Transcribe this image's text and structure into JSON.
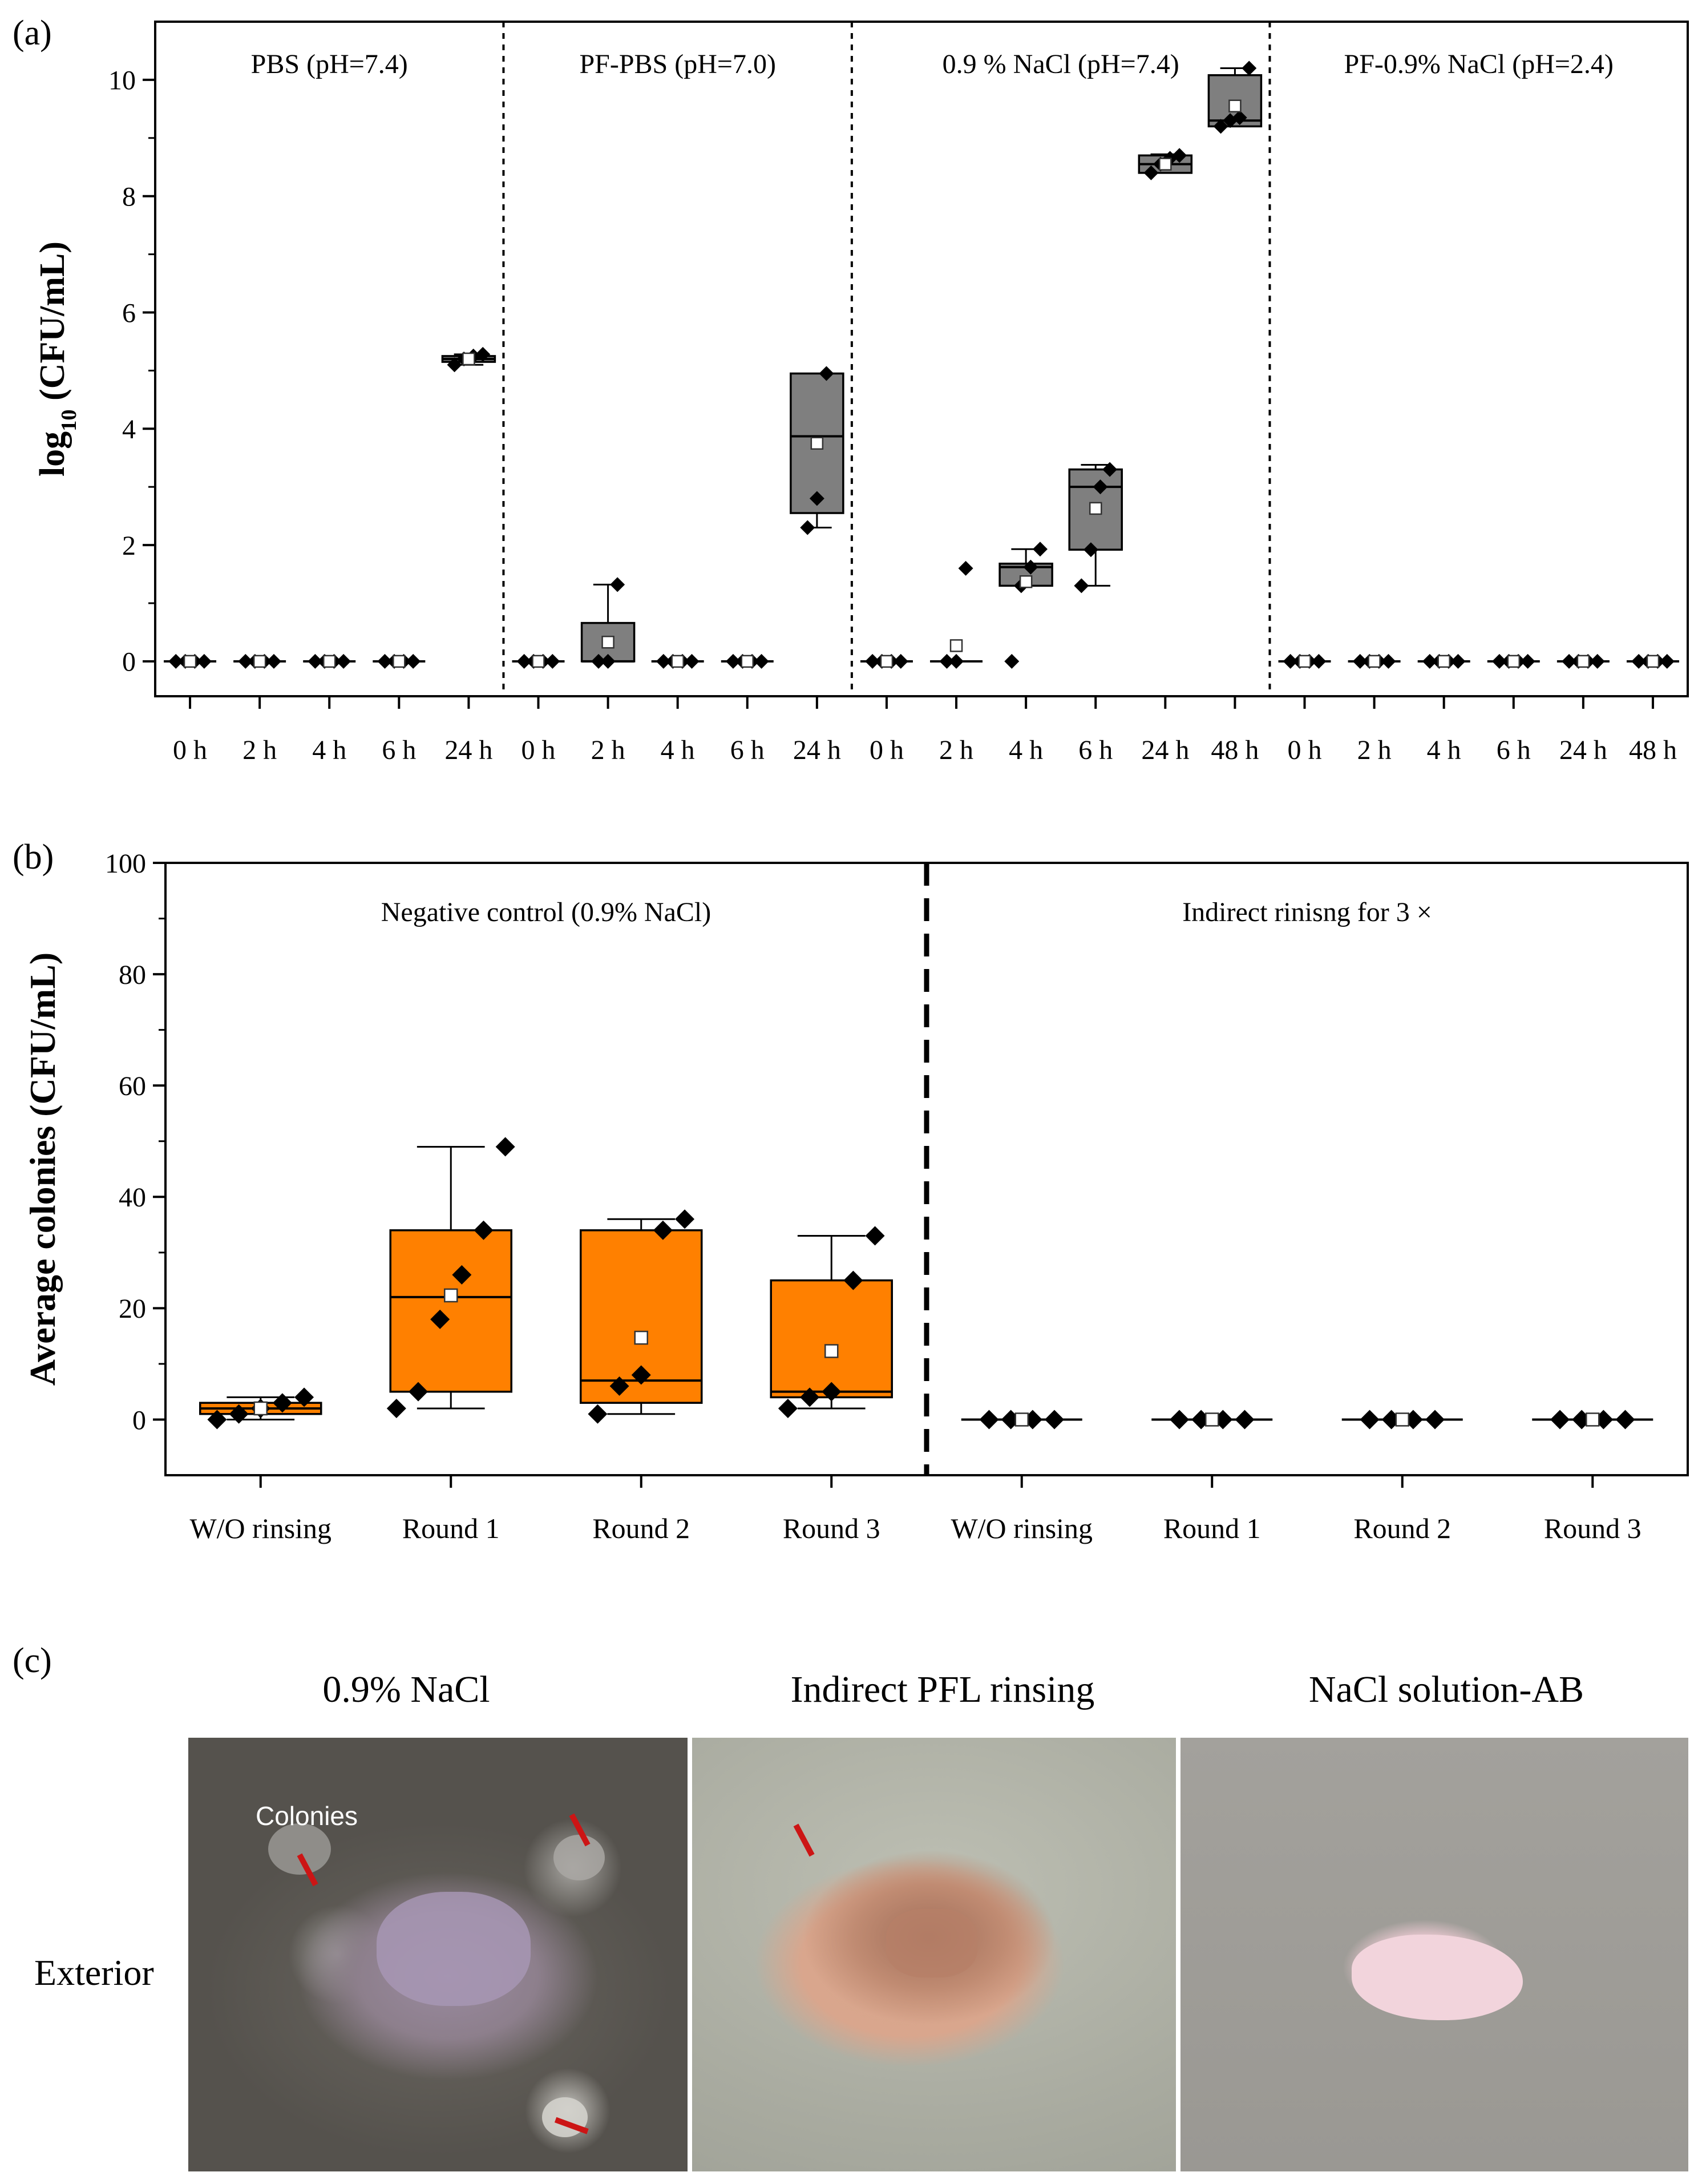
{
  "panel_labels": {
    "a": "(a)",
    "b": "(b)",
    "c": "(c)"
  },
  "colors": {
    "box_a": "#7f7f7f",
    "box_b": "#ff8000",
    "arrow": "#cc1515"
  },
  "chart_data": [
    {
      "type": "box",
      "panel": "(a)",
      "ylabel_main": "log",
      "ylabel_sub": "10",
      "ylabel_rest": " (CFU/mL)",
      "ylim": [
        -0.6,
        11
      ],
      "yticks": [
        0,
        2,
        4,
        6,
        8,
        10
      ],
      "groups": [
        {
          "title": "PBS (pH=7.4)",
          "categories": [
            "0 h",
            "2 h",
            "4 h",
            "6 h",
            "24 h"
          ],
          "boxes": [
            {
              "min": 0,
              "q1": 0,
              "median": 0,
              "q3": 0,
              "max": 0,
              "mean": 0,
              "points": [
                0,
                0,
                0,
                0
              ]
            },
            {
              "min": 0,
              "q1": 0,
              "median": 0,
              "q3": 0,
              "max": 0,
              "mean": 0,
              "points": [
                0,
                0,
                0,
                0
              ]
            },
            {
              "min": 0,
              "q1": 0,
              "median": 0,
              "q3": 0,
              "max": 0,
              "mean": 0,
              "points": [
                0,
                0,
                0,
                0
              ]
            },
            {
              "min": 0,
              "q1": 0,
              "median": 0,
              "q3": 0,
              "max": 0,
              "mean": 0,
              "points": [
                0,
                0,
                0,
                0
              ]
            },
            {
              "min": 5.1,
              "q1": 5.15,
              "median": 5.2,
              "q3": 5.25,
              "max": 5.28,
              "mean": 5.2,
              "points": [
                5.1,
                5.2,
                5.25,
                5.28
              ]
            }
          ]
        },
        {
          "title": "PF-PBS (pH=7.0)",
          "categories": [
            "0 h",
            "2 h",
            "4 h",
            "6 h",
            "24 h"
          ],
          "boxes": [
            {
              "min": 0,
              "q1": 0,
              "median": 0,
              "q3": 0,
              "max": 0,
              "mean": 0,
              "points": [
                0,
                0,
                0,
                0
              ]
            },
            {
              "min": 0,
              "q1": 0,
              "median": 0,
              "q3": 0.66,
              "max": 1.32,
              "mean": 0.33,
              "points": [
                0,
                0,
                1.32
              ]
            },
            {
              "min": 0,
              "q1": 0,
              "median": 0,
              "q3": 0,
              "max": 0,
              "mean": 0,
              "points": [
                0,
                0,
                0,
                0
              ]
            },
            {
              "min": 0,
              "q1": 0,
              "median": 0,
              "q3": 0,
              "max": 0,
              "mean": 0,
              "points": [
                0,
                0,
                0,
                0
              ]
            },
            {
              "min": 2.3,
              "q1": 2.55,
              "median": 3.87,
              "q3": 4.95,
              "max": 4.95,
              "mean": 3.75,
              "points": [
                2.3,
                2.8,
                4.95
              ]
            }
          ]
        },
        {
          "title": "0.9 % NaCl (pH=7.4)",
          "categories": [
            "0 h",
            "2 h",
            "4 h",
            "6 h",
            "24 h",
            "48 h"
          ],
          "boxes": [
            {
              "min": 0,
              "q1": 0,
              "median": 0,
              "q3": 0,
              "max": 0,
              "mean": 0,
              "points": [
                0,
                0,
                0,
                0
              ]
            },
            {
              "min": 0,
              "q1": 0,
              "median": 0,
              "q3": 0,
              "max": 0,
              "mean": 0.27,
              "points": [
                0,
                0,
                1.6
              ]
            },
            {
              "min": 1.3,
              "q1": 1.3,
              "median": 1.62,
              "q3": 1.68,
              "max": 1.93,
              "mean": 1.37,
              "points": [
                0,
                1.3,
                1.62,
                1.93
              ]
            },
            {
              "min": 1.3,
              "q1": 1.92,
              "median": 3.0,
              "q3": 3.3,
              "max": 3.38,
              "mean": 2.63,
              "points": [
                1.3,
                1.92,
                3.0,
                3.3
              ]
            },
            {
              "min": 8.4,
              "q1": 8.4,
              "median": 8.55,
              "q3": 8.7,
              "max": 8.72,
              "mean": 8.55,
              "points": [
                8.4,
                8.55,
                8.65,
                8.7
              ]
            },
            {
              "min": 9.2,
              "q1": 9.2,
              "median": 9.3,
              "q3": 10.08,
              "max": 10.2,
              "mean": 9.55,
              "points": [
                9.2,
                9.3,
                9.35,
                10.2
              ]
            }
          ]
        },
        {
          "title": "PF-0.9% NaCl (pH=2.4)",
          "categories": [
            "0 h",
            "2 h",
            "4 h",
            "6 h",
            "24 h",
            "48 h"
          ],
          "boxes": [
            {
              "min": 0,
              "q1": 0,
              "median": 0,
              "q3": 0,
              "max": 0,
              "mean": 0,
              "points": [
                0,
                0,
                0,
                0
              ]
            },
            {
              "min": 0,
              "q1": 0,
              "median": 0,
              "q3": 0,
              "max": 0,
              "mean": 0,
              "points": [
                0,
                0,
                0,
                0
              ]
            },
            {
              "min": 0,
              "q1": 0,
              "median": 0,
              "q3": 0,
              "max": 0,
              "mean": 0,
              "points": [
                0,
                0,
                0,
                0
              ]
            },
            {
              "min": 0,
              "q1": 0,
              "median": 0,
              "q3": 0,
              "max": 0,
              "mean": 0,
              "points": [
                0,
                0,
                0,
                0
              ]
            },
            {
              "min": 0,
              "q1": 0,
              "median": 0,
              "q3": 0,
              "max": 0,
              "mean": 0,
              "points": [
                0,
                0,
                0,
                0
              ]
            },
            {
              "min": 0,
              "q1": 0,
              "median": 0,
              "q3": 0,
              "max": 0,
              "mean": 0,
              "points": [
                0,
                0,
                0,
                0
              ]
            }
          ]
        }
      ]
    },
    {
      "type": "box",
      "panel": "(b)",
      "ylabel": "Average colonies (CFU/mL)",
      "ylim": [
        -10,
        100
      ],
      "yticks": [
        0,
        20,
        40,
        60,
        80,
        100
      ],
      "groups": [
        {
          "title": "Negative control (0.9% NaCl)",
          "categories": [
            "W/O rinsing",
            "Round 1",
            "Round 2",
            "Round 3"
          ],
          "boxes": [
            {
              "min": 0,
              "q1": 1,
              "median": 2,
              "q3": 3,
              "max": 4,
              "mean": 2,
              "points": [
                0,
                1,
                2,
                3,
                4
              ]
            },
            {
              "min": 2,
              "q1": 5,
              "median": 22,
              "q3": 34,
              "max": 49,
              "mean": 22.3,
              "points": [
                2,
                5,
                18,
                26,
                34,
                49
              ]
            },
            {
              "min": 1,
              "q1": 3,
              "median": 7,
              "q3": 34,
              "max": 36,
              "mean": 14.7,
              "points": [
                1,
                6,
                8,
                34,
                36
              ]
            },
            {
              "min": 2,
              "q1": 4,
              "median": 5,
              "q3": 25,
              "max": 33,
              "mean": 12.3,
              "points": [
                2,
                4,
                5,
                25,
                33
              ]
            }
          ]
        },
        {
          "title": "Indirect rinisng for 3 ×",
          "categories": [
            "W/O rinsing",
            "Round 1",
            "Round 2",
            "Round 3"
          ],
          "boxes": [
            {
              "min": 0,
              "q1": 0,
              "median": 0,
              "q3": 0,
              "max": 0,
              "mean": 0,
              "points": [
                0,
                0,
                0,
                0
              ]
            },
            {
              "min": 0,
              "q1": 0,
              "median": 0,
              "q3": 0,
              "max": 0,
              "mean": 0,
              "points": [
                0,
                0,
                0,
                0
              ]
            },
            {
              "min": 0,
              "q1": 0,
              "median": 0,
              "q3": 0,
              "max": 0,
              "mean": 0,
              "points": [
                0,
                0,
                0,
                0
              ]
            },
            {
              "min": 0,
              "q1": 0,
              "median": 0,
              "q3": 0,
              "max": 0,
              "mean": 0,
              "points": [
                0,
                0,
                0,
                0
              ]
            }
          ]
        }
      ]
    }
  ],
  "panel_c": {
    "column_titles": [
      "0.9% NaCl",
      "Indirect PFL  rinsing",
      "NaCl solution-AB"
    ],
    "row_label": "Exterior",
    "colonies_label": "Colonies"
  }
}
